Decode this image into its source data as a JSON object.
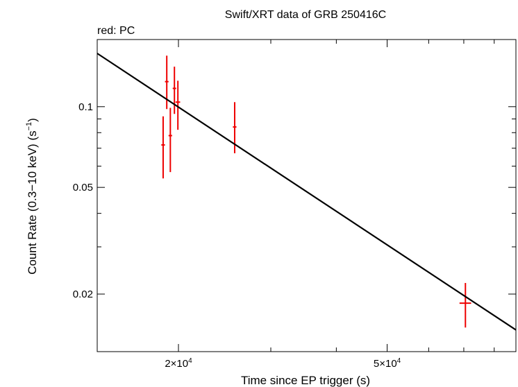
{
  "chart_data": {
    "type": "scatter",
    "title": "Swift/XRT data of GRB 250416C",
    "subtitle": "red: PC",
    "xlabel": "Time since EP trigger (s)",
    "ylabel": "Count Rate (0.3−10 keV) (s",
    "ylabel_sup": "−1",
    "ylabel_close": ")",
    "xscale": "log",
    "yscale": "log",
    "xlim": [
      14000,
      88000
    ],
    "ylim": [
      0.0122,
      0.178
    ],
    "x_ticks": [
      {
        "value": 20000,
        "mantissa": "2×10",
        "exp": "4"
      },
      {
        "value": 50000,
        "mantissa": "5×10",
        "exp": "4"
      }
    ],
    "y_ticks": [
      {
        "value": 0.1,
        "label": "0.1"
      },
      {
        "value": 0.05,
        "label": "0.05"
      },
      {
        "value": 0.02,
        "label": "0.02"
      }
    ],
    "x_minor_ticks": [
      30000,
      40000,
      60000,
      70000,
      80000
    ],
    "y_minor_ticks": [
      0.03,
      0.04,
      0.06,
      0.07,
      0.08,
      0.09,
      0.2
    ],
    "series": [
      {
        "color": "#ee0000",
        "points": [
          {
            "x": 18700,
            "y": 0.072,
            "xerr": [
              150,
              150
            ],
            "yerr": [
              0.018,
              0.02
            ]
          },
          {
            "x": 19000,
            "y": 0.124,
            "xerr": [
              150,
              150
            ],
            "yerr": [
              0.026,
              0.031
            ]
          },
          {
            "x": 19300,
            "y": 0.078,
            "xerr": [
              150,
              150
            ],
            "yerr": [
              0.021,
              0.021
            ]
          },
          {
            "x": 19650,
            "y": 0.117,
            "xerr": [
              150,
              150
            ],
            "yerr": [
              0.023,
              0.024
            ]
          },
          {
            "x": 19950,
            "y": 0.104,
            "xerr": [
              200,
              200
            ],
            "yerr": [
              0.022,
              0.021
            ]
          },
          {
            "x": 25600,
            "y": 0.084,
            "xerr": [
              200,
              200
            ],
            "yerr": [
              0.017,
              0.02
            ]
          },
          {
            "x": 70500,
            "y": 0.0185,
            "xerr": [
              1800,
              1800
            ],
            "yerr": [
              0.0035,
              0.0035
            ]
          }
        ]
      }
    ],
    "model": {
      "color": "#000000",
      "x": [
        14000,
        88000
      ],
      "y": [
        0.158,
        0.0147
      ]
    }
  }
}
